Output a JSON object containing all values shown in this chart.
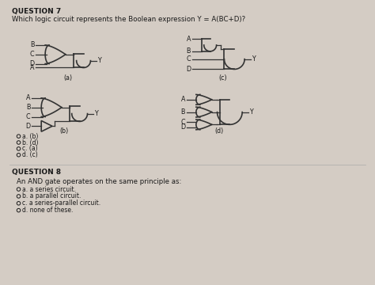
{
  "bg_color": "#d4ccc4",
  "title_q7": "QUESTION 7",
  "question_q7": "Which logic circuit represents the Boolean expression Y = A(BC+D)?",
  "title_q8": "QUESTION 8",
  "question_q8": "An AND gate operates on the same principle as:",
  "q7_options": [
    "a. (b)",
    "b. (d)",
    "c. (a)",
    "d. (c)"
  ],
  "q8_options": [
    "a. a series circuit.",
    "b. a parallel circuit.",
    "c. a series-parallel circuit.",
    "d. none of these."
  ],
  "text_color": "#1a1a1a",
  "gate_color": "#333333",
  "wire_color": "#333333",
  "gate_lw": 1.2,
  "wire_lw": 0.9
}
